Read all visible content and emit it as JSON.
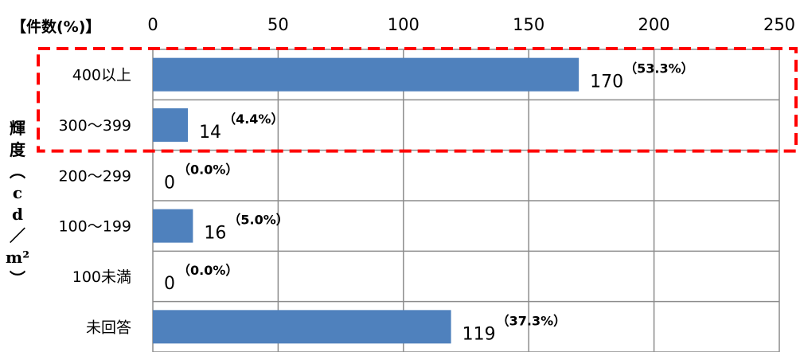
{
  "chart_data": {
    "type": "bar",
    "orientation": "horizontal",
    "title": "【件数(%)】",
    "ylabel": "輝度（cd/㎡）",
    "xlim": [
      0,
      250
    ],
    "xticks": [
      "0",
      "50",
      "100",
      "150",
      "200",
      "250"
    ],
    "grid": true,
    "bar_color": "#4f81bd",
    "highlight_color": "#ff0000",
    "highlighted_categories": [
      "400以上",
      "300～399"
    ],
    "categories": [
      "400以上",
      "300～399",
      "200～299",
      "100～199",
      "100未満",
      "未回答"
    ],
    "values": [
      170,
      14,
      0,
      16,
      0,
      119
    ],
    "percent_labels": [
      "（53.3%）",
      "（4.4%）",
      "（0.0%）",
      "（5.0%）",
      "（0.0%）",
      "（37.3%）"
    ]
  }
}
